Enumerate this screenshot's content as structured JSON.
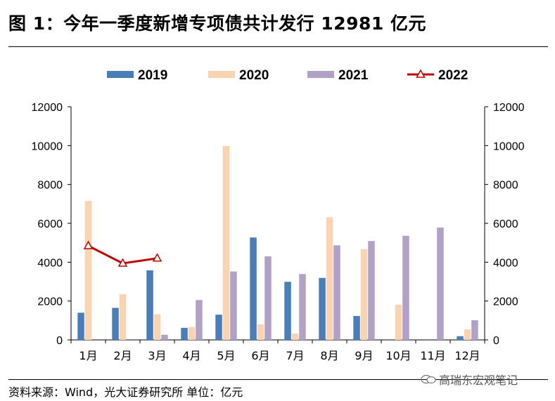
{
  "title": "图 1：今年一季度新增专项债共计发行 12981 亿元",
  "source": "资料来源：Wind，光大证券研究所 单位：亿元",
  "watermark": "高瑞东宏观笔记",
  "chart_data": {
    "type": "bar",
    "categories": [
      "1月",
      "2月",
      "3月",
      "4月",
      "5月",
      "6月",
      "7月",
      "8月",
      "9月",
      "10月",
      "11月",
      "12月"
    ],
    "ylim": [
      0,
      12000
    ],
    "yticks": [
      0,
      2000,
      4000,
      6000,
      8000,
      10000,
      12000
    ],
    "legend_position": "top",
    "series": [
      {
        "name": "2019",
        "type": "bar",
        "color": "#4a7ebb",
        "values": [
          1400,
          1650,
          3580,
          620,
          1300,
          5270,
          2990,
          3190,
          1230,
          0,
          0,
          190
        ]
      },
      {
        "name": "2020",
        "type": "bar",
        "color": "#fad3b0",
        "values": [
          7150,
          2350,
          1320,
          660,
          9980,
          800,
          320,
          6310,
          4670,
          1810,
          0,
          540
        ]
      },
      {
        "name": "2021",
        "type": "bar",
        "color": "#b1a1c7",
        "values": [
          0,
          0,
          260,
          2050,
          3520,
          4300,
          3390,
          4870,
          5090,
          5360,
          5780,
          1010
        ]
      },
      {
        "name": "2022",
        "type": "line",
        "color": "#c00000",
        "values": [
          4840,
          3940,
          4200,
          null,
          null,
          null,
          null,
          null,
          null,
          null,
          null,
          null
        ]
      }
    ]
  }
}
